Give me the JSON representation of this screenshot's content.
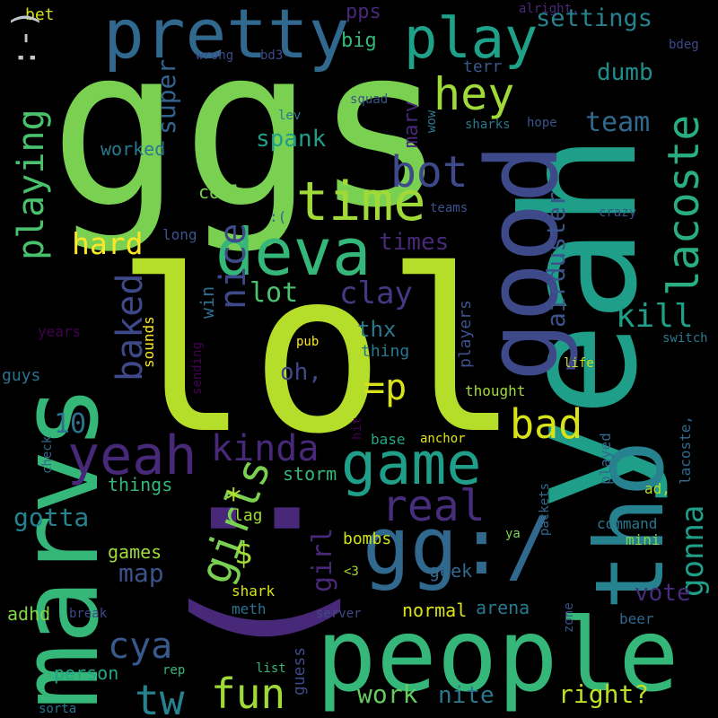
{
  "words": [
    {
      "text": "lol",
      "color": "#b5de2b"
    },
    {
      "text": "ggs",
      "color": "#7ad151"
    },
    {
      "text": "yeah",
      "color": "#1f9e89"
    },
    {
      "text": ":)",
      "color": "#482878"
    },
    {
      "text": "marvs",
      "color": "#35b779"
    },
    {
      "text": "good",
      "color": "#3e4989"
    },
    {
      "text": "people",
      "color": "#35b779"
    },
    {
      "text": "tho",
      "color": "#26828e"
    },
    {
      "text": "gg:/",
      "color": "#31688e"
    },
    {
      "text": "pretty",
      "color": "#31688e"
    },
    {
      "text": "play",
      "color": "#1fa088"
    },
    {
      "text": "deva",
      "color": "#35b779"
    },
    {
      "text": "time",
      "color": "#a0da39"
    },
    {
      "text": "game",
      "color": "#1f9e89"
    },
    {
      "text": "yeah",
      "color": "#482878"
    },
    {
      "text": "hey",
      "color": "#a0da39"
    },
    {
      "text": "bot",
      "color": "#3e4989"
    },
    {
      "text": "lacoste",
      "color": "#29af7f"
    },
    {
      "text": "girls",
      "color": "#7ad151"
    },
    {
      "text": "kinda",
      "color": "#482878"
    },
    {
      "text": "real",
      "color": "#472d7b"
    },
    {
      "text": "bad",
      "color": "#d8e219"
    },
    {
      "text": "playing",
      "color": "#4ac16d"
    },
    {
      "text": "fun",
      "color": "#a0da39"
    },
    {
      "text": "tw",
      "color": "#26828e"
    },
    {
      "text": "cya",
      "color": "#38598c"
    },
    {
      "text": "nice",
      "color": "#3e4989"
    },
    {
      "text": "baked",
      "color": "#3e4989"
    },
    {
      "text": "gonna",
      "color": "#1f9e89"
    },
    {
      "text": "=p",
      "color": "#d8e219"
    },
    {
      "text": "hard",
      "color": "#fde725"
    },
    {
      "text": "clay",
      "color": "#443983"
    },
    {
      "text": "lot",
      "color": "#4ac16d"
    },
    {
      "text": "kill",
      "color": "#1f9e89"
    },
    {
      "text": "spank",
      "color": "#1f9e89"
    },
    {
      "text": "settings",
      "color": "#26828e"
    },
    {
      "text": "airduster",
      "color": "#3b528b"
    },
    {
      "text": "team",
      "color": "#31688e"
    },
    {
      "text": "dumb",
      "color": "#228d8d"
    },
    {
      "text": "super",
      "color": "#33638d"
    },
    {
      "text": "work",
      "color": "#65cb5e"
    },
    {
      "text": "nite",
      "color": "#2a788e"
    },
    {
      "text": "right?",
      "color": "#bddf26"
    },
    {
      "text": "10",
      "color": "#2c728e"
    },
    {
      "text": "gotta",
      "color": "#26828e"
    },
    {
      "text": "girl",
      "color": "#482878"
    },
    {
      "text": "map",
      "color": "#3b528b"
    },
    {
      "text": "vote",
      "color": "#472d7b"
    },
    {
      "text": "times",
      "color": "#482878"
    },
    {
      "text": "oh,",
      "color": "#3e4989"
    },
    {
      "text": "thx",
      "color": "#2a788e"
    },
    {
      "text": "worked",
      "color": "#2a788e"
    },
    {
      "text": "cool",
      "color": "#7ad151"
    },
    {
      "text": "$",
      "color": "#a5db36"
    },
    {
      "text": "*",
      "color": "#b5de2b"
    },
    {
      "text": "storm",
      "color": "#35b779"
    },
    {
      "text": "things",
      "color": "#35b779"
    },
    {
      "text": "games",
      "color": "#9fda3a"
    },
    {
      "text": "lag",
      "color": "#a0da39"
    },
    {
      "text": "bombs",
      "color": "#d0e11c"
    },
    {
      "text": "geek",
      "color": "#31688e"
    },
    {
      "text": "arena",
      "color": "#2a788e"
    },
    {
      "text": "normal",
      "color": "#dde318"
    },
    {
      "text": "adhd",
      "color": "#84d44b"
    },
    {
      "text": "person",
      "color": "#22a884"
    },
    {
      "text": "guess",
      "color": "#3e4989"
    },
    {
      "text": "shark",
      "color": "#d8e219"
    },
    {
      "text": "meth",
      "color": "#2c728e"
    },
    {
      "text": "big",
      "color": "#35b779"
    },
    {
      "text": "pps",
      "color": "#482878"
    },
    {
      "text": "terr",
      "color": "#38598c"
    },
    {
      "text": "marv",
      "color": "#482878"
    },
    {
      "text": "players",
      "color": "#3b528b"
    },
    {
      "text": "thing",
      "color": "#2a788e"
    },
    {
      "text": "win",
      "color": "#2f6c8e"
    },
    {
      "text": "sounds",
      "color": "#fde725"
    },
    {
      "text": "years",
      "color": "#440154"
    },
    {
      "text": "guys",
      "color": "#2c728e"
    },
    {
      "text": "bet",
      "color": "#d0e11c"
    },
    {
      "text": "alright,",
      "color": "#482878"
    },
    {
      "text": "bdeg",
      "color": "#3e4989"
    },
    {
      "text": "wrong",
      "color": "#3e4989"
    },
    {
      "text": "bd3",
      "color": "#3e4989"
    },
    {
      "text": "squad",
      "color": "#3b528b"
    },
    {
      "text": "lev",
      "color": "#2a788e"
    },
    {
      "text": "wow",
      "color": "#2a788e"
    },
    {
      "text": "sharks",
      "color": "#2a788e"
    },
    {
      "text": "hope",
      "color": "#3b528b"
    },
    {
      "text": "teams",
      "color": "#3b528b"
    },
    {
      "text": "crazy",
      "color": "#3b528b"
    },
    {
      "text": ":(",
      "color": "#31688e"
    },
    {
      "text": "long",
      "color": "#3b528b"
    },
    {
      "text": "pub",
      "color": "#fde725"
    },
    {
      "text": "switch",
      "color": "#2a788e"
    },
    {
      "text": "life",
      "color": "#c8e020"
    },
    {
      "text": "sending",
      "color": "#440154"
    },
    {
      "text": "thought",
      "color": "#a0da39"
    },
    {
      "text": "base",
      "color": "#22a884"
    },
    {
      "text": "anchor",
      "color": "#dde318"
    },
    {
      "text": "hit",
      "color": "#440154"
    },
    {
      "text": "check",
      "color": "#31688e"
    },
    {
      "text": "packets",
      "color": "#31688e"
    },
    {
      "text": "played",
      "color": "#31688e"
    },
    {
      "text": "ad,",
      "color": "#b5de2b"
    },
    {
      "text": "ya",
      "color": "#7ad151"
    },
    {
      "text": "command",
      "color": "#2a788e"
    },
    {
      "text": "mini",
      "color": "#84d44b"
    },
    {
      "text": "lacoste,",
      "color": "#31688e"
    },
    {
      "text": "<3",
      "color": "#a0da39"
    },
    {
      "text": "server",
      "color": "#3e4989"
    },
    {
      "text": "break",
      "color": "#3e4989"
    },
    {
      "text": "zone",
      "color": "#3b528b"
    },
    {
      "text": "beer",
      "color": "#31688e"
    },
    {
      "text": "rep",
      "color": "#35b779"
    },
    {
      "text": "list",
      "color": "#35b779"
    },
    {
      "text": "sorta",
      "color": "#2c728e"
    },
    {
      "text": ":-)",
      "color": "#c0c6cc"
    }
  ]
}
